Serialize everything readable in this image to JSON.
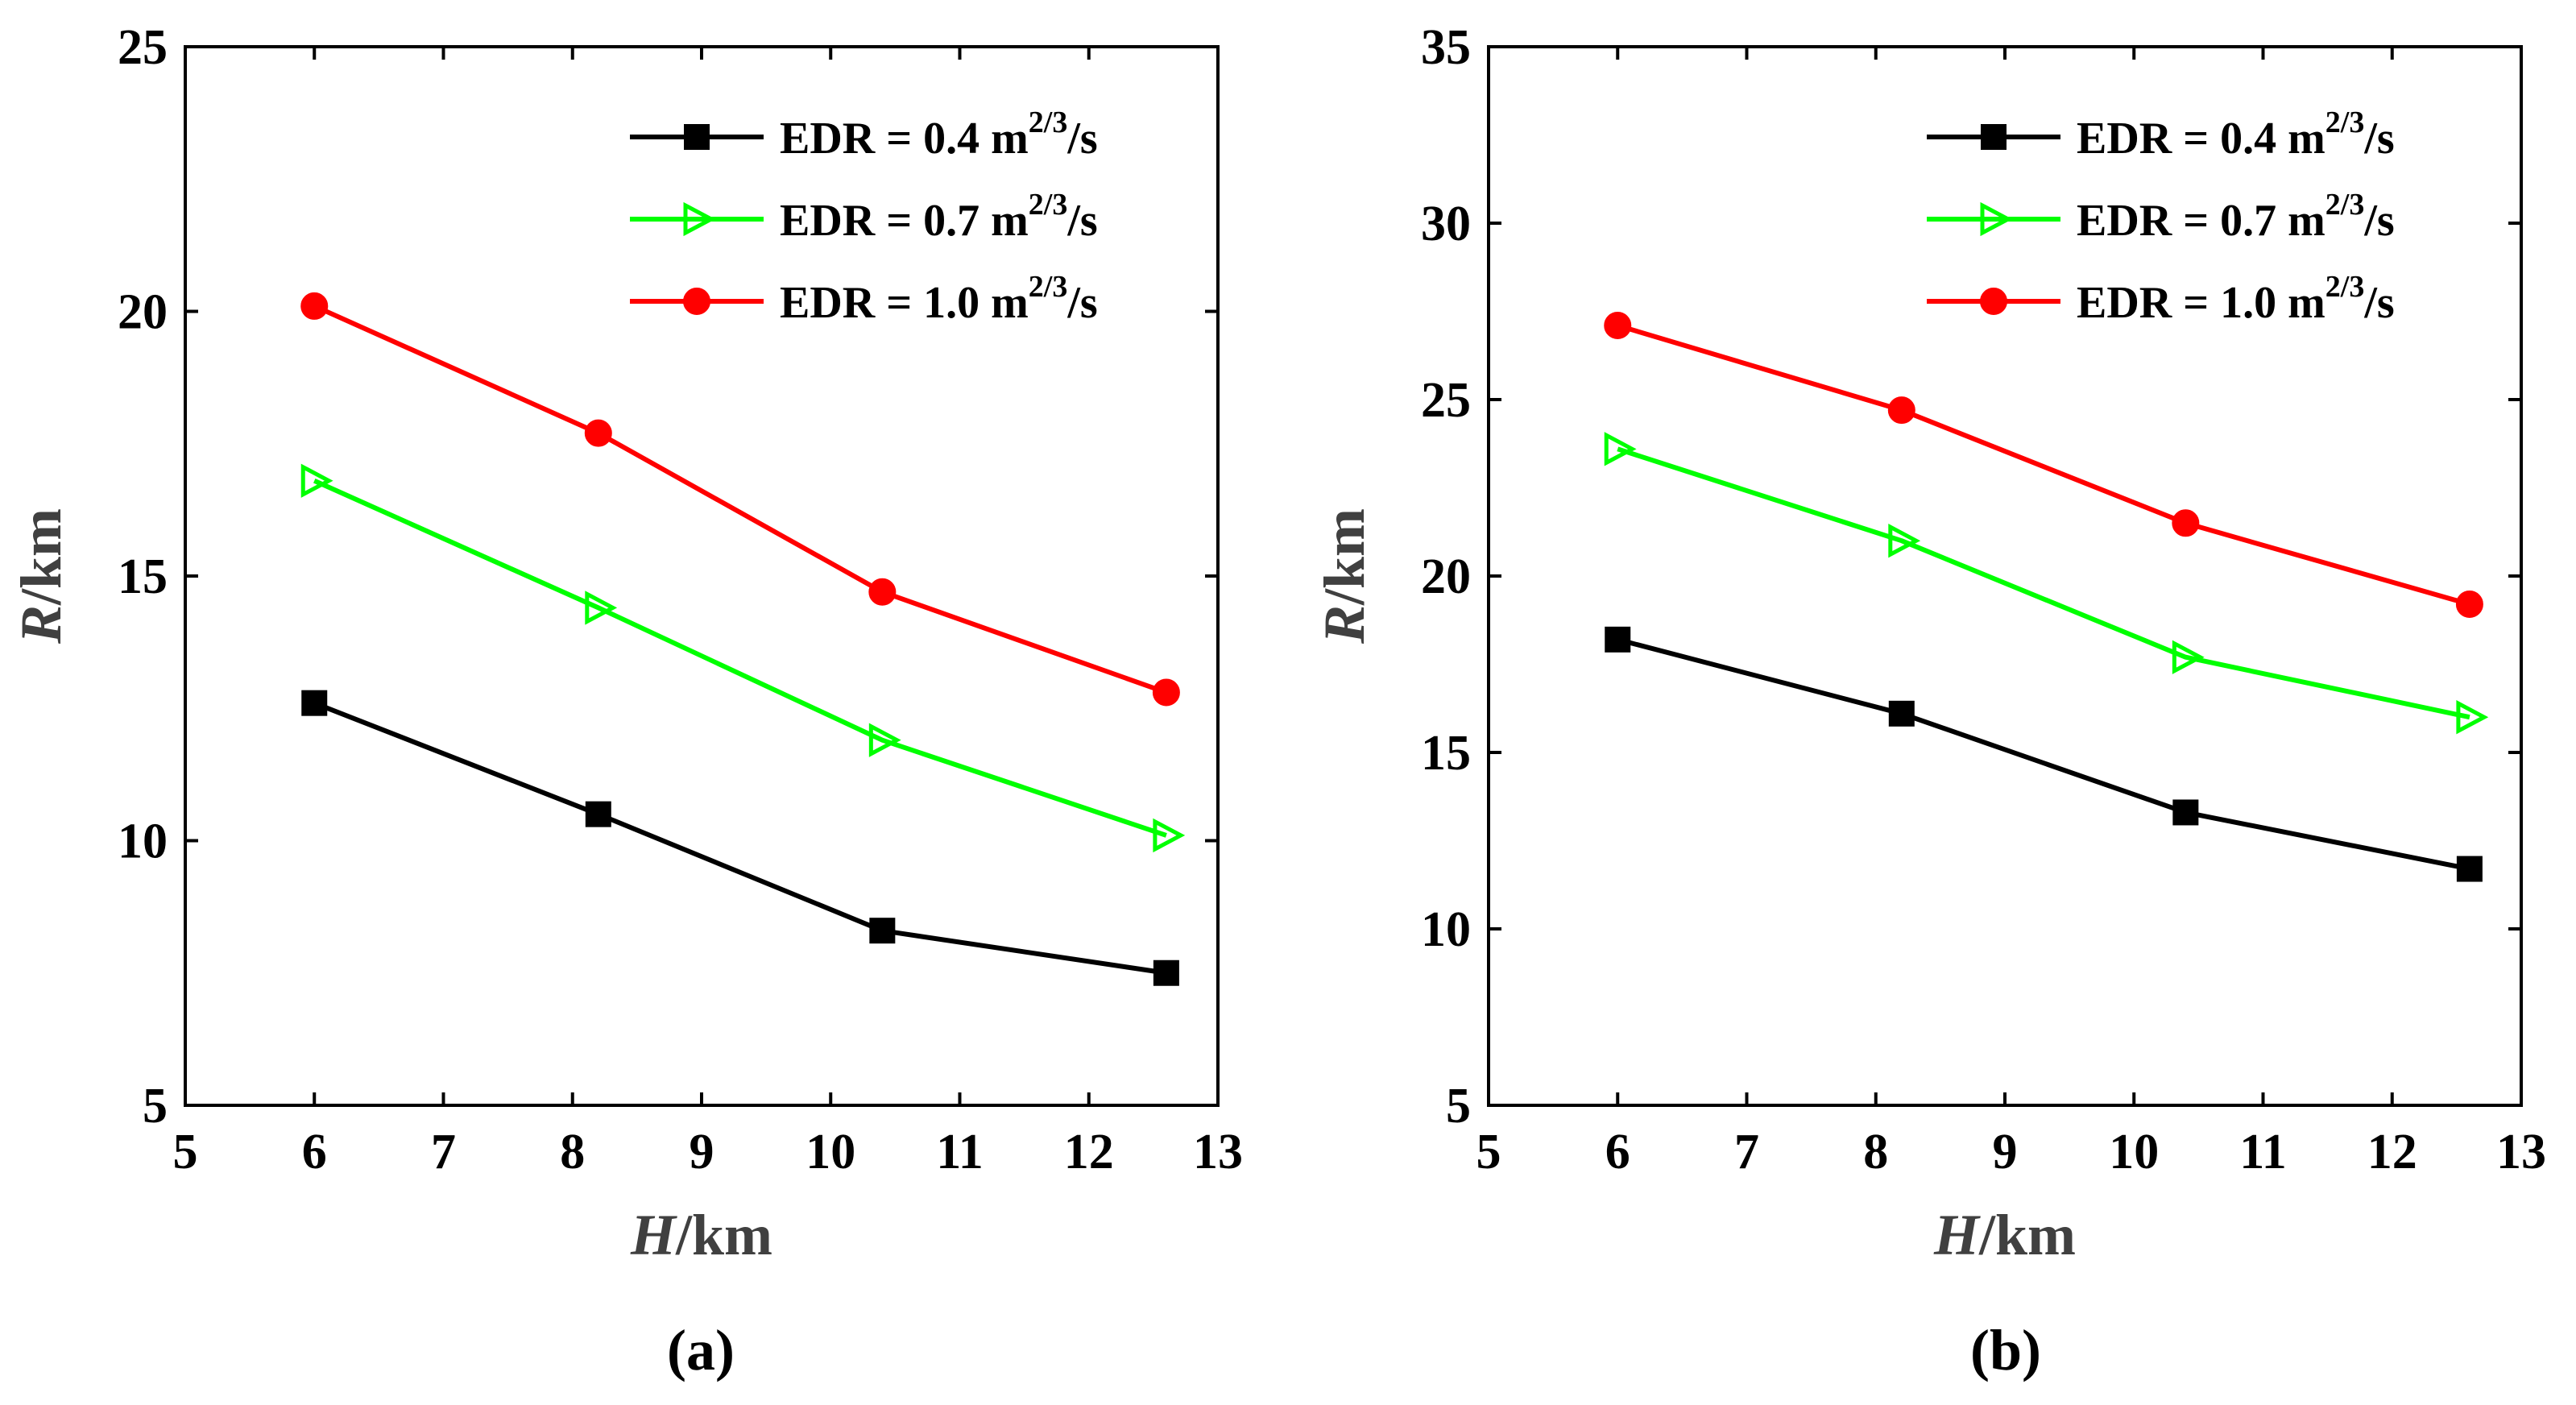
{
  "chart_data": [
    {
      "type": "line",
      "panel_label": "(a)",
      "xlabel": "H",
      "xlabel_unit": "/km",
      "ylabel": "R",
      "ylabel_unit": "/km",
      "xlim": [
        5,
        13
      ],
      "ylim": [
        5,
        25
      ],
      "xticks": [
        5,
        6,
        7,
        8,
        9,
        10,
        11,
        12,
        13
      ],
      "yticks": [
        5,
        10,
        15,
        20,
        25
      ],
      "legend_position": "top-right",
      "series": [
        {
          "name": "EDR = 0.4 m2/3/s",
          "label_prefix": "EDR = 0.4 m",
          "label_sup": "2/3",
          "label_suffix": "/s",
          "color": "#000000",
          "marker": "square",
          "x": [
            6.0,
            8.2,
            10.4,
            12.6
          ],
          "values": [
            12.6,
            10.5,
            8.3,
            7.5
          ]
        },
        {
          "name": "EDR = 0.7 m2/3/s",
          "label_prefix": "EDR = 0.7 m",
          "label_sup": "2/3",
          "label_suffix": "/s",
          "color": "#00ff00",
          "marker": "triangle-right",
          "x": [
            6.0,
            8.2,
            10.4,
            12.6
          ],
          "values": [
            16.8,
            14.4,
            11.9,
            10.1
          ]
        },
        {
          "name": "EDR = 1.0 m2/3/s",
          "label_prefix": "EDR = 1.0 m",
          "label_sup": "2/3",
          "label_suffix": "/s",
          "color": "#ff0000",
          "marker": "circle",
          "x": [
            6.0,
            8.2,
            10.4,
            12.6
          ],
          "values": [
            20.1,
            17.7,
            14.7,
            12.8
          ]
        }
      ]
    },
    {
      "type": "line",
      "panel_label": "(b)",
      "xlabel": "H",
      "xlabel_unit": "/km",
      "ylabel": "R",
      "ylabel_unit": "/km",
      "xlim": [
        5,
        13
      ],
      "ylim": [
        5,
        35
      ],
      "xticks": [
        5,
        6,
        7,
        8,
        9,
        10,
        11,
        12,
        13
      ],
      "yticks": [
        5,
        10,
        15,
        20,
        25,
        30,
        35
      ],
      "legend_position": "top-right",
      "series": [
        {
          "name": "EDR = 0.4 m2/3/s",
          "label_prefix": "EDR = 0.4 m",
          "label_sup": "2/3",
          "label_suffix": "/s",
          "color": "#000000",
          "marker": "square",
          "x": [
            6.0,
            8.2,
            10.4,
            12.6
          ],
          "values": [
            18.2,
            16.1,
            13.3,
            11.7
          ]
        },
        {
          "name": "EDR = 0.7 m2/3/s",
          "label_prefix": "EDR = 0.7 m",
          "label_sup": "2/3",
          "label_suffix": "/s",
          "color": "#00ff00",
          "marker": "triangle-right",
          "x": [
            6.0,
            8.2,
            10.4,
            12.6
          ],
          "values": [
            23.6,
            21.0,
            17.7,
            16.0
          ]
        },
        {
          "name": "EDR = 1.0 m2/3/s",
          "label_prefix": "EDR = 1.0 m",
          "label_sup": "2/3",
          "label_suffix": "/s",
          "color": "#ff0000",
          "marker": "circle",
          "x": [
            6.0,
            8.2,
            10.4,
            12.6
          ],
          "values": [
            27.1,
            24.7,
            21.5,
            19.2
          ]
        }
      ]
    }
  ]
}
